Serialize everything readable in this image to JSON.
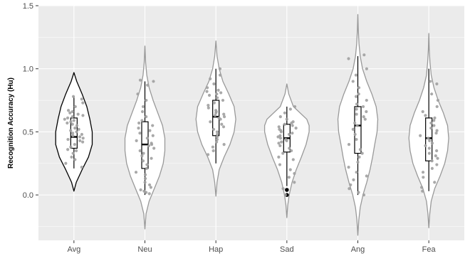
{
  "chart_data": {
    "type": "violin",
    "title": "",
    "xlabel": "",
    "ylabel": "Recognition Accuracy (Hu)",
    "categories": [
      "Avg",
      "Neu",
      "Hap",
      "Sad",
      "Ang",
      "Fea"
    ],
    "ylim": [
      -0.36,
      1.5
    ],
    "yticks": [
      0.0,
      0.5,
      1.0,
      1.5
    ],
    "ytick_labels": [
      "0.0",
      "0.5",
      "1.0",
      "1.5"
    ],
    "grid": true,
    "legend": "none",
    "colors": {
      "panel": "#ebebeb",
      "grid": "#ffffff",
      "violin_fill": "#ffffff",
      "violin_stroke_first": "#000000",
      "violin_stroke_other": "#999999",
      "points": "#a0a0a0",
      "box": "#000000"
    },
    "groups": [
      {
        "name": "Avg",
        "violin_range": [
          0.03,
          0.97
        ],
        "box": {
          "whisker_low": 0.21,
          "q1": 0.37,
          "median": 0.46,
          "q3": 0.61,
          "whisker_high": 0.78
        },
        "outliers": [],
        "violin_profile": [
          [
            0.03,
            0.0
          ],
          [
            0.1,
            0.1
          ],
          [
            0.2,
            0.35
          ],
          [
            0.3,
            0.62
          ],
          [
            0.4,
            0.78
          ],
          [
            0.5,
            0.78
          ],
          [
            0.6,
            0.68
          ],
          [
            0.7,
            0.55
          ],
          [
            0.8,
            0.35
          ],
          [
            0.9,
            0.12
          ],
          [
            0.97,
            0.0
          ]
        ],
        "points": [
          0.22,
          0.25,
          0.28,
          0.3,
          0.33,
          0.35,
          0.36,
          0.38,
          0.4,
          0.42,
          0.43,
          0.44,
          0.45,
          0.46,
          0.47,
          0.48,
          0.49,
          0.5,
          0.51,
          0.52,
          0.53,
          0.55,
          0.56,
          0.57,
          0.58,
          0.59,
          0.6,
          0.61,
          0.62,
          0.63,
          0.64,
          0.65,
          0.66,
          0.67,
          0.7,
          0.73,
          0.76,
          0.78
        ]
      },
      {
        "name": "Neu",
        "violin_range": [
          -0.27,
          1.18
        ],
        "box": {
          "whisker_low": 0.0,
          "q1": 0.21,
          "median": 0.4,
          "q3": 0.58,
          "whisker_high": 0.9
        },
        "outliers": [],
        "violin_profile": [
          [
            -0.27,
            0.0
          ],
          [
            -0.15,
            0.05
          ],
          [
            -0.05,
            0.18
          ],
          [
            0.05,
            0.4
          ],
          [
            0.15,
            0.62
          ],
          [
            0.25,
            0.78
          ],
          [
            0.35,
            0.85
          ],
          [
            0.45,
            0.85
          ],
          [
            0.55,
            0.75
          ],
          [
            0.65,
            0.55
          ],
          [
            0.75,
            0.35
          ],
          [
            0.85,
            0.18
          ],
          [
            0.95,
            0.08
          ],
          [
            1.05,
            0.03
          ],
          [
            1.18,
            0.0
          ]
        ],
        "points": [
          0.01,
          0.02,
          0.03,
          0.04,
          0.06,
          0.08,
          0.1,
          0.13,
          0.16,
          0.18,
          0.21,
          0.24,
          0.27,
          0.29,
          0.31,
          0.33,
          0.35,
          0.37,
          0.39,
          0.4,
          0.41,
          0.43,
          0.45,
          0.47,
          0.49,
          0.51,
          0.53,
          0.55,
          0.57,
          0.59,
          0.62,
          0.66,
          0.7,
          0.75,
          0.8,
          0.87,
          0.9,
          0.91
        ]
      },
      {
        "name": "Hap",
        "violin_range": [
          -0.01,
          1.22
        ],
        "box": {
          "whisker_low": 0.25,
          "q1": 0.47,
          "median": 0.62,
          "q3": 0.75,
          "whisker_high": 1.0
        },
        "outliers": [],
        "violin_profile": [
          [
            -0.01,
            0.0
          ],
          [
            0.1,
            0.05
          ],
          [
            0.2,
            0.14
          ],
          [
            0.3,
            0.35
          ],
          [
            0.4,
            0.6
          ],
          [
            0.5,
            0.78
          ],
          [
            0.6,
            0.85
          ],
          [
            0.7,
            0.78
          ],
          [
            0.8,
            0.55
          ],
          [
            0.9,
            0.3
          ],
          [
            1.0,
            0.14
          ],
          [
            1.1,
            0.05
          ],
          [
            1.22,
            0.0
          ]
        ],
        "points": [
          0.32,
          0.35,
          0.38,
          0.4,
          0.42,
          0.44,
          0.46,
          0.48,
          0.5,
          0.52,
          0.54,
          0.56,
          0.58,
          0.6,
          0.61,
          0.62,
          0.63,
          0.64,
          0.65,
          0.66,
          0.67,
          0.69,
          0.71,
          0.73,
          0.75,
          0.77,
          0.79,
          0.8,
          0.81,
          0.82,
          0.83,
          0.85,
          0.88,
          0.92,
          0.95,
          1.0
        ]
      },
      {
        "name": "Sad",
        "violin_range": [
          -0.18,
          0.88
        ],
        "box": {
          "whisker_low": 0.07,
          "q1": 0.34,
          "median": 0.45,
          "q3": 0.56,
          "whisker_high": 0.7
        },
        "outliers": [
          0.04,
          0.0
        ],
        "violin_profile": [
          [
            -0.18,
            0.0
          ],
          [
            -0.08,
            0.04
          ],
          [
            0.0,
            0.1
          ],
          [
            0.1,
            0.22
          ],
          [
            0.2,
            0.4
          ],
          [
            0.3,
            0.62
          ],
          [
            0.4,
            0.82
          ],
          [
            0.5,
            0.95
          ],
          [
            0.55,
            0.95
          ],
          [
            0.6,
            0.85
          ],
          [
            0.7,
            0.28
          ],
          [
            0.8,
            0.08
          ],
          [
            0.88,
            0.0
          ]
        ],
        "points": [
          0.0,
          0.05,
          0.1,
          0.14,
          0.17,
          0.2,
          0.24,
          0.28,
          0.3,
          0.33,
          0.35,
          0.37,
          0.39,
          0.41,
          0.42,
          0.43,
          0.44,
          0.45,
          0.46,
          0.47,
          0.48,
          0.49,
          0.5,
          0.51,
          0.52,
          0.53,
          0.54,
          0.55,
          0.56,
          0.57,
          0.58,
          0.6,
          0.62,
          0.65,
          0.68,
          0.7
        ]
      },
      {
        "name": "Ang",
        "violin_range": [
          -0.32,
          1.43
        ],
        "box": {
          "whisker_low": 0.0,
          "q1": 0.33,
          "median": 0.55,
          "q3": 0.7,
          "whisker_high": 1.1
        },
        "outliers": [],
        "violin_profile": [
          [
            -0.32,
            0.0
          ],
          [
            -0.2,
            0.04
          ],
          [
            -0.1,
            0.1
          ],
          [
            0.0,
            0.22
          ],
          [
            0.1,
            0.38
          ],
          [
            0.2,
            0.52
          ],
          [
            0.3,
            0.63
          ],
          [
            0.4,
            0.72
          ],
          [
            0.5,
            0.82
          ],
          [
            0.6,
            0.85
          ],
          [
            0.7,
            0.78
          ],
          [
            0.8,
            0.6
          ],
          [
            0.9,
            0.38
          ],
          [
            1.0,
            0.2
          ],
          [
            1.1,
            0.1
          ],
          [
            1.2,
            0.05
          ],
          [
            1.3,
            0.02
          ],
          [
            1.43,
            0.0
          ]
        ],
        "points": [
          0.0,
          0.02,
          0.05,
          0.08,
          0.12,
          0.15,
          0.18,
          0.22,
          0.26,
          0.3,
          0.33,
          0.36,
          0.4,
          0.44,
          0.48,
          0.52,
          0.55,
          0.57,
          0.6,
          0.62,
          0.64,
          0.66,
          0.68,
          0.7,
          0.72,
          0.75,
          0.78,
          0.8,
          0.85,
          0.9,
          0.95,
          1.0,
          1.08,
          1.11
        ]
      },
      {
        "name": "Fea",
        "violin_range": [
          -0.26,
          1.28
        ],
        "box": {
          "whisker_low": 0.03,
          "q1": 0.27,
          "median": 0.45,
          "q3": 0.61,
          "whisker_high": 1.0
        },
        "outliers": [],
        "violin_profile": [
          [
            -0.26,
            0.0
          ],
          [
            -0.15,
            0.04
          ],
          [
            -0.05,
            0.1
          ],
          [
            0.05,
            0.25
          ],
          [
            0.15,
            0.48
          ],
          [
            0.25,
            0.68
          ],
          [
            0.35,
            0.8
          ],
          [
            0.45,
            0.85
          ],
          [
            0.55,
            0.8
          ],
          [
            0.65,
            0.62
          ],
          [
            0.75,
            0.4
          ],
          [
            0.85,
            0.22
          ],
          [
            0.95,
            0.1
          ],
          [
            1.05,
            0.05
          ],
          [
            1.15,
            0.02
          ],
          [
            1.28,
            0.0
          ]
        ],
        "points": [
          0.03,
          0.06,
          0.1,
          0.14,
          0.18,
          0.21,
          0.24,
          0.27,
          0.29,
          0.31,
          0.33,
          0.35,
          0.37,
          0.39,
          0.41,
          0.43,
          0.45,
          0.47,
          0.49,
          0.51,
          0.53,
          0.55,
          0.57,
          0.59,
          0.61,
          0.63,
          0.66,
          0.7,
          0.75,
          0.8,
          0.88,
          0.9
        ]
      }
    ]
  }
}
